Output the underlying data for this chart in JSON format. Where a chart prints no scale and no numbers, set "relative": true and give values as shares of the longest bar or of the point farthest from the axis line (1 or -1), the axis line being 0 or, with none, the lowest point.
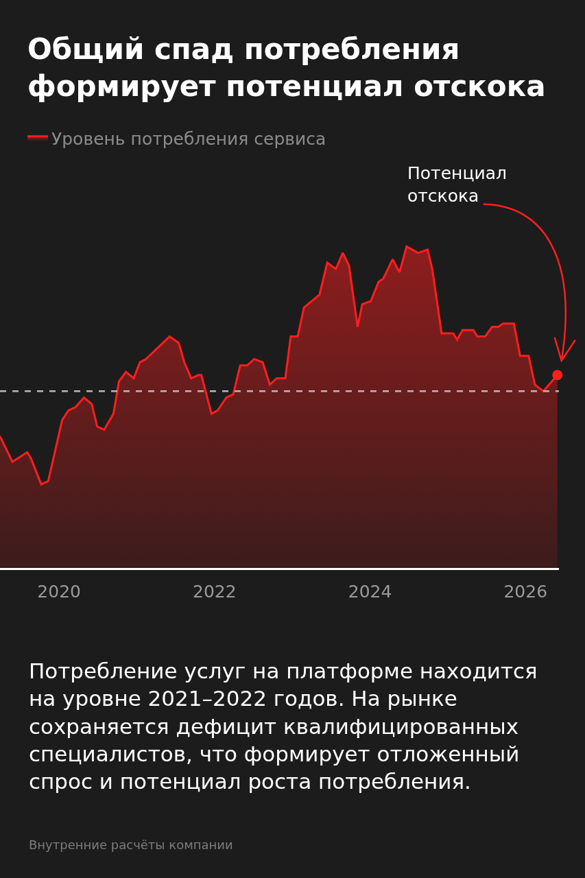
{
  "chart_data": {
    "type": "area",
    "relative": true,
    "title": "Общий спад потребления\nформирует потенциал отскока",
    "xlim": [
      2019.24,
      2026.43
    ],
    "xticks": [
      2020,
      2022,
      2024,
      2026
    ],
    "grid": false,
    "legend": "top left",
    "series": [
      {
        "name": "Уровень потребления сервиса",
        "color": "#ff1e1e",
        "x": [
          2019.24,
          2019.4,
          2019.59,
          2019.64,
          2019.77,
          2019.86,
          2020.04,
          2020.12,
          2020.21,
          2020.32,
          2020.42,
          2020.49,
          2020.58,
          2020.7,
          2020.77,
          2020.86,
          2020.96,
          2021.04,
          2021.12,
          2021.42,
          2021.54,
          2021.61,
          2021.7,
          2021.79,
          2021.83,
          2021.96,
          2022.04,
          2022.15,
          2022.24,
          2022.33,
          2022.42,
          2022.51,
          2022.62,
          2022.71,
          2022.8,
          2022.91,
          2022.98,
          2023.07,
          2023.15,
          2023.35,
          2023.45,
          2023.56,
          2023.65,
          2023.73,
          2023.84,
          2023.9,
          2024.01,
          2024.11,
          2024.17,
          2024.29,
          2024.38,
          2024.47,
          2024.62,
          2024.74,
          2024.8,
          2024.92,
          2025.07,
          2025.12,
          2025.19,
          2025.33,
          2025.38,
          2025.48,
          2025.57,
          2025.65,
          2025.71,
          2025.77,
          2025.85,
          2025.93,
          2026.04,
          2026.12,
          2026.23,
          2026.41
        ],
        "values": [
          0.41,
          0.33,
          0.36,
          0.34,
          0.26,
          0.27,
          0.46,
          0.49,
          0.5,
          0.53,
          0.51,
          0.44,
          0.43,
          0.48,
          0.58,
          0.61,
          0.59,
          0.64,
          0.65,
          0.72,
          0.7,
          0.64,
          0.59,
          0.6,
          0.6,
          0.48,
          0.49,
          0.53,
          0.54,
          0.63,
          0.63,
          0.65,
          0.64,
          0.57,
          0.59,
          0.59,
          0.72,
          0.72,
          0.81,
          0.85,
          0.95,
          0.93,
          0.98,
          0.94,
          0.75,
          0.82,
          0.83,
          0.89,
          0.9,
          0.96,
          0.92,
          1.0,
          0.98,
          0.99,
          0.93,
          0.73,
          0.73,
          0.71,
          0.74,
          0.74,
          0.72,
          0.72,
          0.75,
          0.75,
          0.76,
          0.76,
          0.76,
          0.66,
          0.66,
          0.57,
          0.55,
          0.6
        ]
      },
      {
        "type": "scatter",
        "color": "#ff1e1e",
        "marker": "circle",
        "x": [
          2026.41
        ],
        "values": [
          0.6
        ]
      }
    ],
    "ref_lines": [
      {
        "axis": "y",
        "value": 0.55,
        "color": "#b8b8b8",
        "line_style": "dashed"
      }
    ],
    "annotations": [
      "Потенциал\nотскока",
      "Потребление услуг на платформе находится\nна уровне 2021–2022 годов. На рынке\nсохраняется дефицит квалифицированных\nспециалистов, что формирует отложенный\nспрос и потенциал роста потребления.",
      "Внутренние расчёты компании"
    ]
  }
}
